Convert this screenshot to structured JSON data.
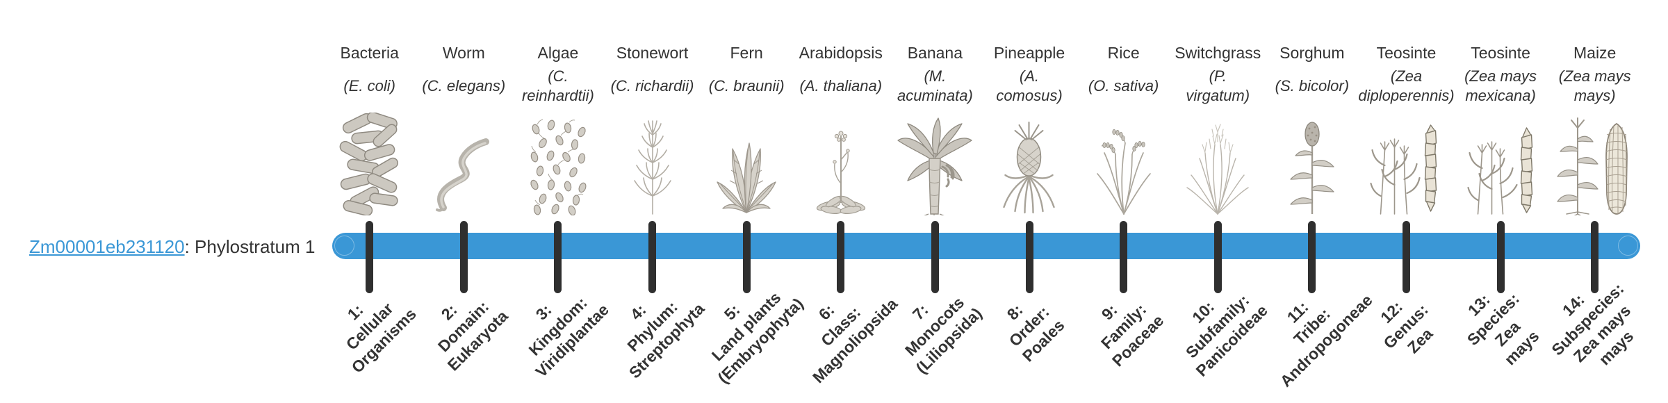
{
  "gene": {
    "id": "Zm00001eb231120",
    "suffix": ": Phylostratum 1"
  },
  "colors": {
    "accent_blue": "#3a97d6",
    "tick_dark": "#2f2f2f",
    "text_dark": "#333333",
    "icon_gray": "#b9b4ab"
  },
  "organisms": [
    {
      "name": "Bacteria",
      "species": "(E. coli)",
      "icon": "bacteria-icon"
    },
    {
      "name": "Worm",
      "species": "(C. elegans)",
      "icon": "worm-icon"
    },
    {
      "name": "Algae",
      "species": "(C.\nreinhardtii)",
      "icon": "algae-icon"
    },
    {
      "name": "Stonewort",
      "species": "(C. richardii)",
      "icon": "stonewort-icon"
    },
    {
      "name": "Fern",
      "species": "(C. braunii)",
      "icon": "fern-icon"
    },
    {
      "name": "Arabidopsis",
      "species": "(A. thaliana)",
      "icon": "arabidopsis-icon"
    },
    {
      "name": "Banana",
      "species": "(M.\nacuminata)",
      "icon": "banana-icon"
    },
    {
      "name": "Pineapple",
      "species": "(A.\ncomosus)",
      "icon": "pineapple-icon"
    },
    {
      "name": "Rice",
      "species": "(O. sativa)",
      "icon": "rice-icon"
    },
    {
      "name": "Switchgrass",
      "species": "(P.\nvirgatum)",
      "icon": "switchgrass-icon"
    },
    {
      "name": "Sorghum",
      "species": "(S. bicolor)",
      "icon": "sorghum-icon"
    },
    {
      "name": "Teosinte",
      "species": "(Zea\ndiploperennis)",
      "icon": "teosinte-diploperennis-icon"
    },
    {
      "name": "Teosinte",
      "species": "(Zea mays\nmexicana)",
      "icon": "teosinte-mexicana-icon"
    },
    {
      "name": "Maize",
      "species": "(Zea mays\nmays)",
      "icon": "maize-icon"
    }
  ],
  "strata": [
    "1:\nCellular\nOrganisms",
    "2:\nDomain:\nEukaryota",
    "3:\nKingdom:\nViridiplantae",
    "4:\nPhylum:\nStreptophyta",
    "5:\nLand plants\n(Embryophyta)",
    "6:\nClass:\nMagnoliopsida",
    "7:\nMonocots\n(Liliopsida)",
    "8:\nOrder:\nPoales",
    "9:\nFamily:\nPoaceae",
    "10:\nSubfamily:\nPanicoideae",
    "11:\nTribe:\nAndropogoneae",
    "12:\nGenus:\nZea",
    "13:\nSpecies:\nZea\nmays",
    "14:\nSubspecies:\nZea mays\nmays"
  ]
}
